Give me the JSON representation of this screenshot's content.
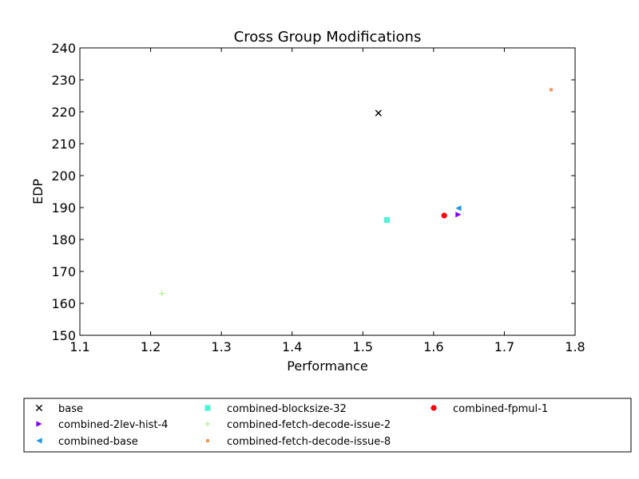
{
  "chart_data": {
    "type": "scatter",
    "title": "Cross Group Modifications",
    "xlabel": "Performance",
    "ylabel": "EDP",
    "xlim": [
      1.1,
      1.8
    ],
    "ylim": [
      150,
      240
    ],
    "xticks": [
      "1.1",
      "1.2",
      "1.3",
      "1.4",
      "1.5",
      "1.6",
      "1.7",
      "1.8"
    ],
    "yticks": [
      "150",
      "160",
      "170",
      "180",
      "190",
      "200",
      "210",
      "220",
      "230",
      "240"
    ],
    "grid": false,
    "legend_position": "below",
    "series": [
      {
        "name": "base",
        "marker": "x",
        "color": "#000000",
        "x": 1.522,
        "y": 219.6
      },
      {
        "name": "combined-2lev-hist-4",
        "marker": "triangle-right",
        "color": "#7f00ff",
        "x": 1.635,
        "y": 187.8
      },
      {
        "name": "combined-base",
        "marker": "triangle-left",
        "color": "#1e96e5",
        "x": 1.635,
        "y": 189.8
      },
      {
        "name": "combined-blocksize-32",
        "marker": "square",
        "color": "#52f2d6",
        "x": 1.534,
        "y": 186.1
      },
      {
        "name": "combined-fetch-decode-issue-2",
        "marker": "plus",
        "color": "#b2f28c",
        "x": 1.216,
        "y": 163.1
      },
      {
        "name": "combined-fetch-decode-issue-8",
        "marker": "dot",
        "color": "#ff924d",
        "x": 1.766,
        "y": 226.9
      },
      {
        "name": "combined-fpmul-1",
        "marker": "circle",
        "color": "#ff0000",
        "x": 1.615,
        "y": 187.5
      }
    ]
  }
}
